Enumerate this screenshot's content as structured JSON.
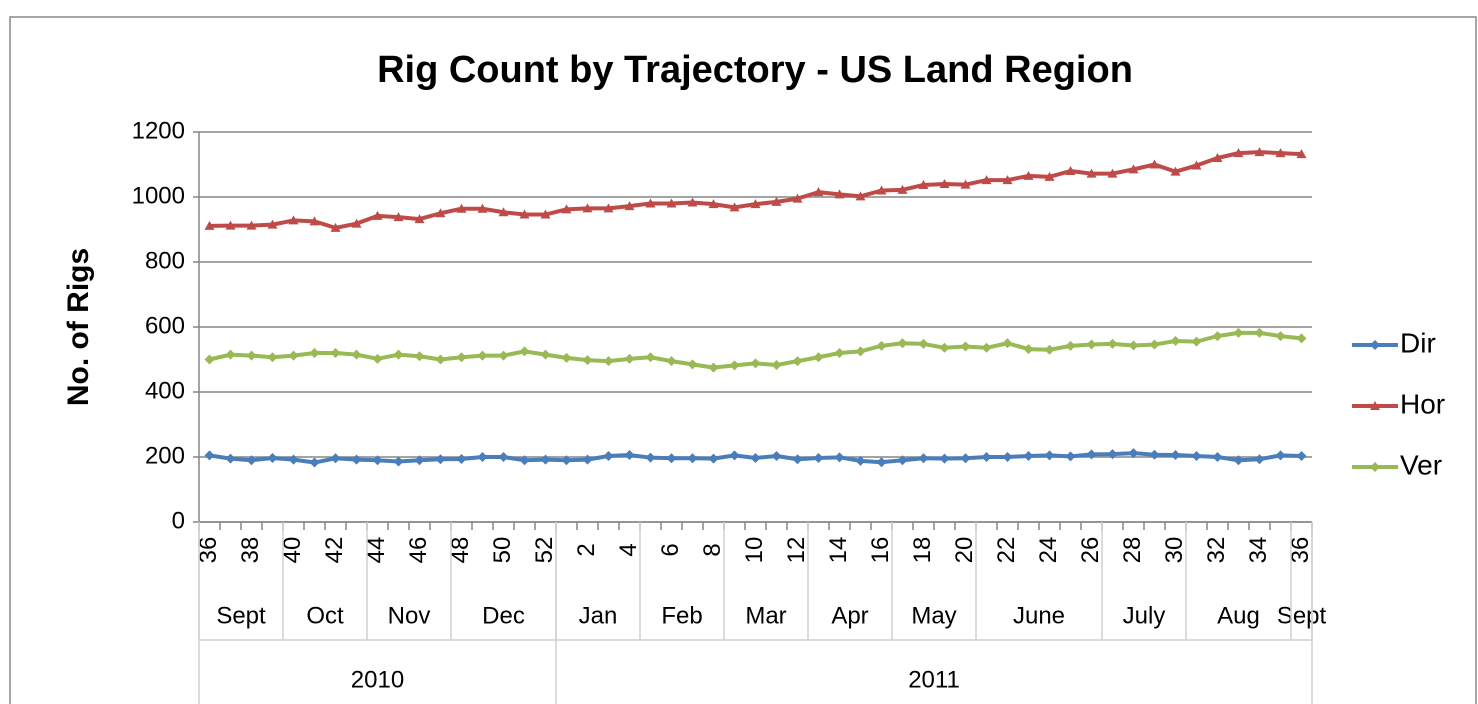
{
  "chart_data": {
    "type": "line",
    "title": "Rig Count by Trajectory - US Land Region",
    "y_label": "No. of Rigs",
    "categories": [
      "36",
      null,
      "38",
      null,
      "40",
      null,
      "42",
      null,
      "44",
      null,
      "46",
      null,
      "48",
      null,
      "50",
      null,
      "52",
      null,
      "2",
      null,
      "4",
      null,
      "6",
      null,
      "8",
      null,
      "10",
      null,
      "12",
      null,
      "14",
      null,
      "16",
      null,
      "18",
      null,
      "20",
      null,
      "22",
      null,
      "24",
      null,
      "26",
      null,
      "28",
      null,
      "30",
      null,
      "32",
      null,
      "34",
      null,
      "36"
    ],
    "categories_level2": [
      "Sept",
      null,
      null,
      null,
      "Oct",
      null,
      null,
      null,
      "Nov",
      null,
      null,
      null,
      "Dec",
      null,
      null,
      null,
      null,
      "Jan",
      null,
      null,
      null,
      "Feb",
      null,
      null,
      null,
      "Mar",
      null,
      null,
      null,
      "Apr",
      null,
      null,
      null,
      "May",
      null,
      null,
      null,
      "June",
      null,
      null,
      null,
      null,
      null,
      "July",
      null,
      null,
      null,
      "Aug",
      null,
      null,
      null,
      null,
      "Sept"
    ],
    "categories_level3": [
      "2010",
      null,
      null,
      null,
      null,
      null,
      null,
      null,
      null,
      null,
      null,
      null,
      null,
      null,
      null,
      null,
      null,
      "2011",
      null,
      null,
      null,
      null,
      null,
      null,
      null,
      null,
      null,
      null,
      null,
      null,
      null,
      null,
      null,
      null,
      null,
      null,
      null,
      null,
      null,
      null,
      null,
      null,
      null,
      null,
      null,
      null,
      null,
      null,
      null,
      null,
      null,
      null,
      null
    ],
    "ylim": [
      0,
      1200
    ],
    "yticks": [
      0,
      200,
      400,
      600,
      800,
      1000,
      1200
    ],
    "grid": true,
    "legend": "right",
    "series": [
      {
        "name": "Dir",
        "color": "#4a7ebb",
        "marker": "diamond",
        "values": [
          205,
          195,
          190,
          197,
          192,
          183,
          196,
          192,
          190,
          186,
          190,
          193,
          194,
          200,
          200,
          190,
          192,
          190,
          192,
          203,
          206,
          198,
          196,
          196,
          195,
          205,
          197,
          203,
          193,
          197,
          199,
          188,
          184,
          190,
          196,
          195,
          196,
          200,
          200,
          203,
          205,
          202,
          208,
          209,
          212,
          207,
          206,
          203,
          200,
          190,
          193,
          205,
          203
        ]
      },
      {
        "name": "Hor",
        "color": "#be4b48",
        "marker": "triangle",
        "values": [
          911,
          912,
          912,
          915,
          928,
          925,
          905,
          918,
          942,
          938,
          932,
          950,
          964,
          964,
          953,
          946,
          946,
          962,
          965,
          965,
          972,
          980,
          980,
          983,
          978,
          968,
          978,
          985,
          995,
          1015,
          1008,
          1002,
          1020,
          1022,
          1037,
          1040,
          1038,
          1052,
          1052,
          1065,
          1062,
          1080,
          1072,
          1072,
          1085,
          1100,
          1078,
          1097,
          1120,
          1135,
          1138,
          1135,
          1132
        ]
      },
      {
        "name": "Ver",
        "color": "#98b954",
        "marker": "diamond",
        "values": [
          500,
          515,
          512,
          507,
          512,
          520,
          520,
          515,
          502,
          515,
          510,
          500,
          507,
          512,
          512,
          525,
          515,
          505,
          498,
          495,
          502,
          507,
          495,
          485,
          475,
          482,
          488,
          483,
          495,
          507,
          520,
          525,
          542,
          550,
          548,
          536,
          540,
          536,
          550,
          532,
          530,
          542,
          546,
          548,
          543,
          546,
          557,
          555,
          572,
          582,
          582,
          572,
          565
        ]
      }
    ]
  }
}
